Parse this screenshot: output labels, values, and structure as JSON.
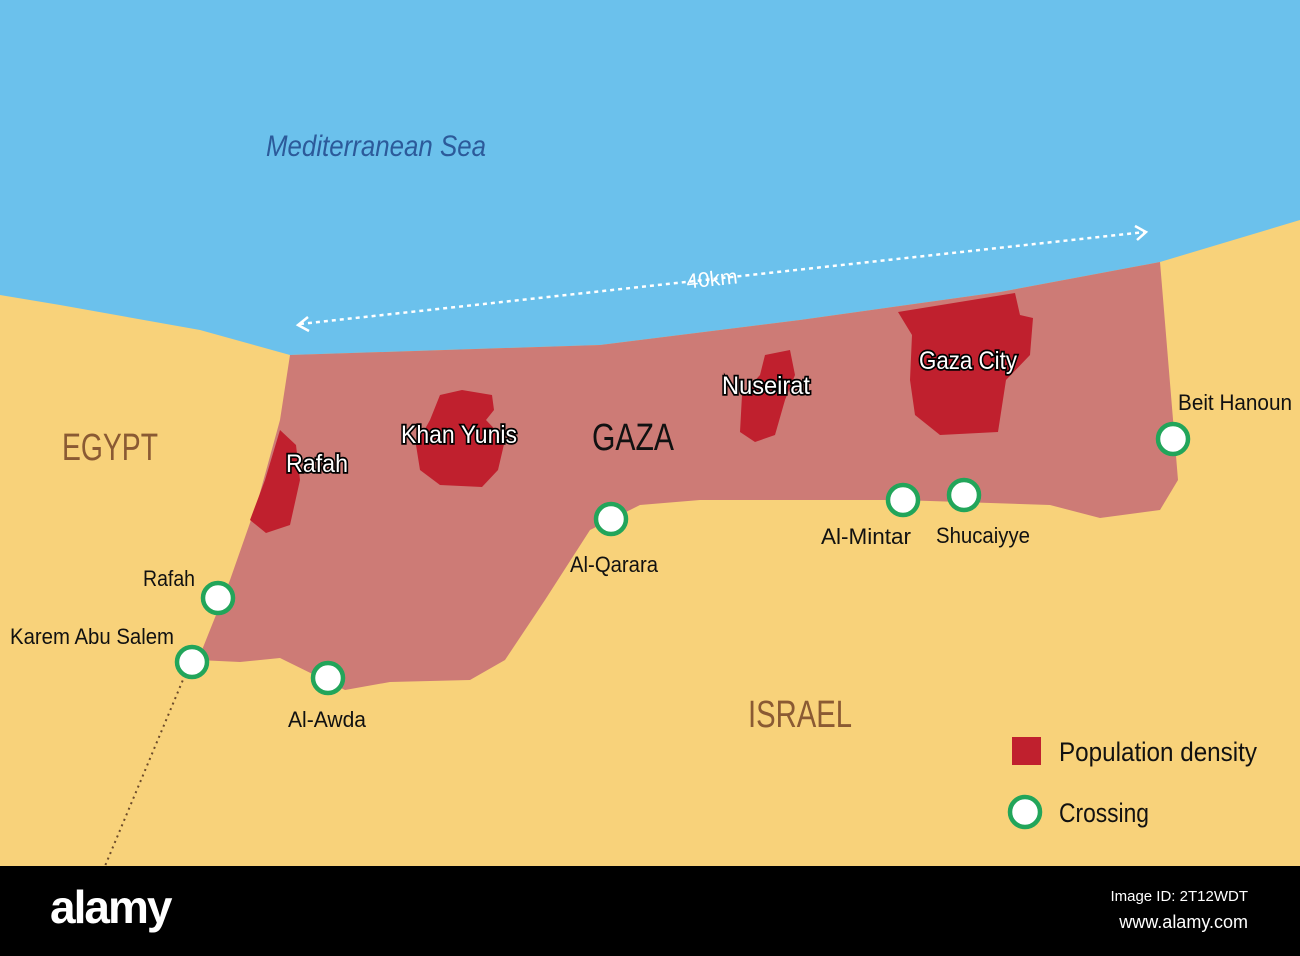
{
  "map": {
    "sea_label": "Mediterranean Sea",
    "distance_label": "40km",
    "region_label": "GAZA",
    "countries": {
      "egypt": "EGYPT",
      "israel": "ISRAEL"
    },
    "cities": [
      "Rafah",
      "Khan Yunis",
      "Nuseirat",
      "Gaza City"
    ],
    "crossings": [
      "Rafah",
      "Karem Abu Salem",
      "Al-Awda",
      "Al-Qarara",
      "Al-Mintar",
      "Shucaiyye",
      "Beit Hanoun"
    ],
    "legend": {
      "density": "Population density",
      "crossing": "Crossing"
    },
    "colors": {
      "sea": "#6bc1ec",
      "land": "#f8d27a",
      "gaza": "#cd7b76",
      "density": "#c0202e",
      "crossing": "#22a55a",
      "country_text": "#8a5a33",
      "sea_text": "#2c5a9a"
    }
  },
  "watermark": {
    "logo": "alamy",
    "image_id": "Image ID: 2T12WDT",
    "url": "www.alamy.com"
  }
}
